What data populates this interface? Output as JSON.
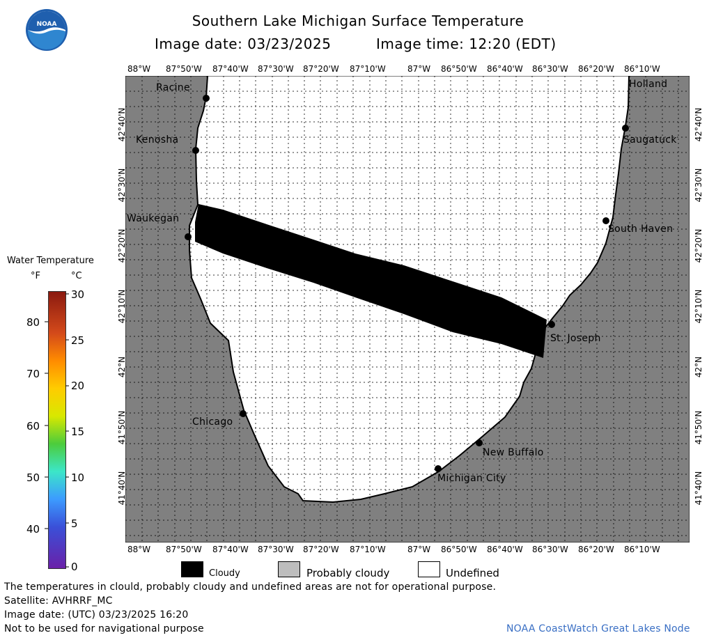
{
  "header": {
    "title": "Southern Lake Michigan Surface Temperature",
    "image_date_label": "Image date: 03/23/2025",
    "image_time_label": "Image time: 12:20 (EDT)",
    "logo_text": "NOAA"
  },
  "longitude_labels": [
    "88°W",
    "87°50'W",
    "87°40'W",
    "87°30'W",
    "87°20'W",
    "87°10'W",
    "87°W",
    "86°50'W",
    "86°40'W",
    "86°30'W",
    "86°20'W",
    "86°10'W"
  ],
  "latitude_labels": [
    "42°40'N",
    "42°30'N",
    "42°20'N",
    "42°10'N",
    "42°N",
    "41°50'N",
    "41°40'N"
  ],
  "cities": {
    "racine": "Racine",
    "kenosha": "Kenosha",
    "waukegan": "Waukegan",
    "chicago": "Chicago",
    "holland": "Holland",
    "saugatuck": "Saugatuck",
    "south_haven": "South Haven",
    "st_joseph": "St. Joseph",
    "new_buffalo": "New Buffalo",
    "michigan_city": "Michigan City"
  },
  "colorbar": {
    "title": "Water Temperature",
    "unit_f": "°F",
    "unit_c": "°C",
    "fahrenheit_ticks": [
      "80",
      "70",
      "60",
      "50",
      "40"
    ],
    "celsius_ticks": [
      "30",
      "25",
      "20",
      "15",
      "10",
      "5",
      "0"
    ],
    "range_c": [
      0,
      30
    ]
  },
  "legend": {
    "cloudy": "Cloudy",
    "probably_cloudy": "Probably cloudy",
    "undefined": "Undefined",
    "cloudy_color": "#000000",
    "probably_cloudy_color": "#bdbdbd",
    "undefined_color": "#ffffff",
    "land_color": "#808080"
  },
  "footer": {
    "line1": "The temperatures in clould, probably cloudy and undefined areas are not for operational purpose.",
    "line2": "Satellite: AVHRRF_MC",
    "line3": "Image date: (UTC) 03/23/2025  16:20",
    "line4": "Not to be used for navigational purpose",
    "credit": "NOAA CoastWatch Great Lakes Node"
  }
}
